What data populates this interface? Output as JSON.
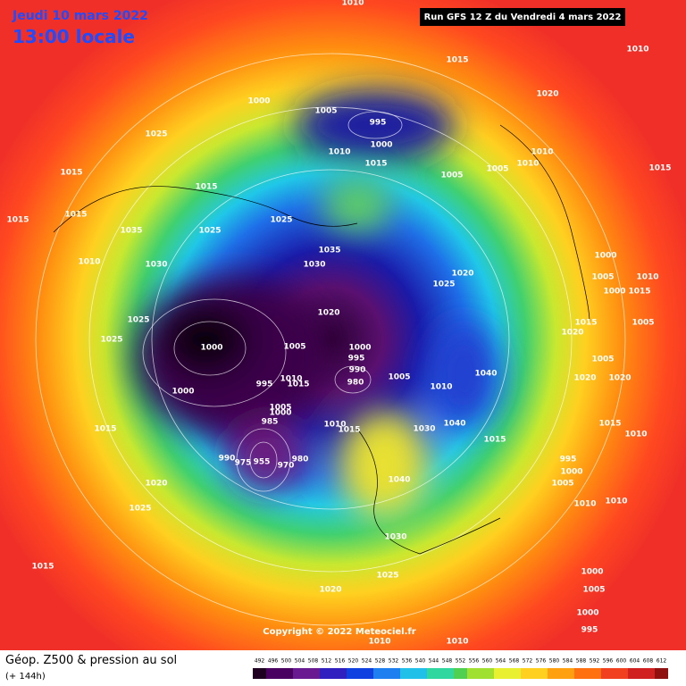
{
  "header": {
    "date": "Jeudi 10 mars 2022",
    "time": "13:00 locale",
    "run": "Run GFS 12 Z du Vendredi 4 mars 2022"
  },
  "map": {
    "copyright": "Copyright © 2022 Meteociel.fr",
    "isobar_labels": [
      1010,
      1015,
      1010,
      1000,
      1005,
      995,
      1000,
      1020,
      1025,
      1010,
      1015,
      1005,
      1005,
      1010,
      1010,
      1015,
      1015,
      1015,
      1015,
      1015,
      1025,
      1035,
      1025,
      1035,
      1030,
      1030,
      1010,
      1000,
      1005,
      1010,
      1020,
      1025,
      1000,
      1015,
      1020,
      1025,
      1015,
      1020,
      1005,
      1000,
      1005,
      1000,
      1025,
      995,
      990,
      980,
      1005,
      1040,
      995,
      1010,
      1015,
      1000,
      1010,
      1020,
      1005,
      1020,
      1005,
      1000,
      1010,
      1015,
      985,
      1040,
      1030,
      1015,
      1010,
      1015,
      1015,
      990,
      975,
      955,
      970,
      980,
      995,
      1000,
      1005,
      1020,
      1040,
      1010,
      1010,
      1025,
      1030,
      1015,
      1025,
      1020,
      1005,
      1000,
      995,
      1010,
      1010,
      1000
    ]
  },
  "footer": {
    "title": "Géop. Z500 & pression au sol",
    "lead_time": "(+ 144h)",
    "scale_labels": [
      492,
      496,
      500,
      504,
      508,
      512,
      516,
      520,
      524,
      528,
      532,
      536,
      540,
      544,
      548,
      552,
      556,
      560,
      564,
      568,
      572,
      576,
      580,
      584,
      588,
      592,
      596,
      600,
      604,
      608,
      612
    ]
  }
}
